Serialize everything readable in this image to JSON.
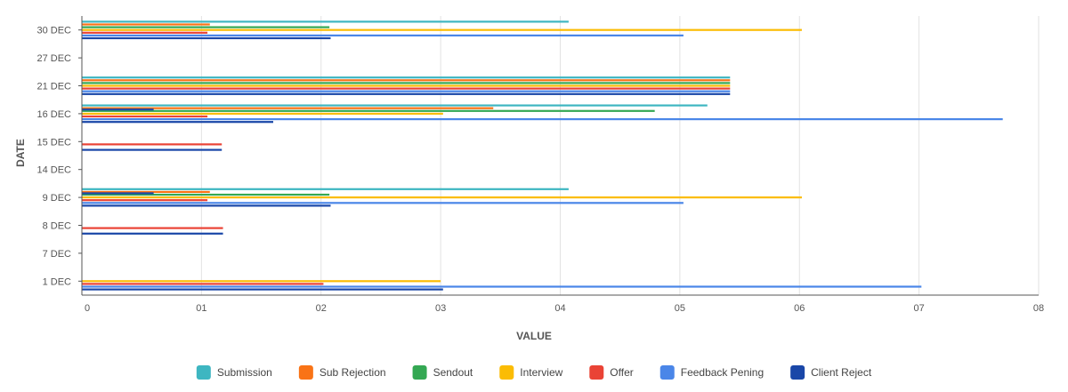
{
  "chart_data": {
    "type": "bar",
    "orientation": "horizontal",
    "xlabel": "VALUE",
    "ylabel": "DATE",
    "xlim": [
      0,
      8
    ],
    "x_ticks": [
      "0",
      "01",
      "02",
      "03",
      "04",
      "05",
      "06",
      "07",
      "08"
    ],
    "categories": [
      "30 DEC",
      "27 DEC",
      "21 DEC",
      "16 DEC",
      "15 DEC",
      "14 DEC",
      "9 DEC",
      "8 DEC",
      "7 DEC",
      "1 DEC"
    ],
    "grid": true,
    "legend_position": "bottom",
    "series": [
      {
        "name": "Submission",
        "color": "#3EB6C1",
        "values": [
          4.07,
          0,
          5.42,
          5.23,
          0,
          0,
          4.07,
          0,
          0,
          0
        ]
      },
      {
        "name": "Sub Rejection",
        "color": "#F97316",
        "values": [
          1.07,
          0,
          5.42,
          3.44,
          0,
          0,
          1.07,
          0,
          0,
          0
        ]
      },
      {
        "name": "Sendout",
        "color": "#34A853",
        "values": [
          2.07,
          0,
          5.42,
          4.79,
          0,
          0,
          2.07,
          0,
          0,
          0
        ]
      },
      {
        "name": "Interview",
        "color": "#FBBC04",
        "values": [
          6.02,
          0,
          5.42,
          3.02,
          0,
          0,
          6.02,
          0,
          0,
          3.0
        ]
      },
      {
        "name": "Offer",
        "color": "#EA4335",
        "values": [
          1.05,
          0,
          5.42,
          1.05,
          1.17,
          0,
          1.05,
          1.18,
          0,
          2.02
        ]
      },
      {
        "name": "Feedback Pening",
        "color": "#4A86E8",
        "values": [
          5.03,
          0,
          5.42,
          7.7,
          0,
          0,
          5.03,
          0,
          0,
          7.02
        ]
      },
      {
        "name": "Client Reject",
        "color": "#1A47A8",
        "values": [
          2.08,
          0,
          5.42,
          1.6,
          1.17,
          0,
          2.08,
          1.18,
          0,
          3.02
        ]
      }
    ],
    "extra_bars": [
      {
        "category": "16 DEC",
        "series": "Client Reject",
        "value": 0.6
      },
      {
        "category": "9 DEC",
        "series": "Client Reject",
        "value": 0.6
      }
    ]
  }
}
